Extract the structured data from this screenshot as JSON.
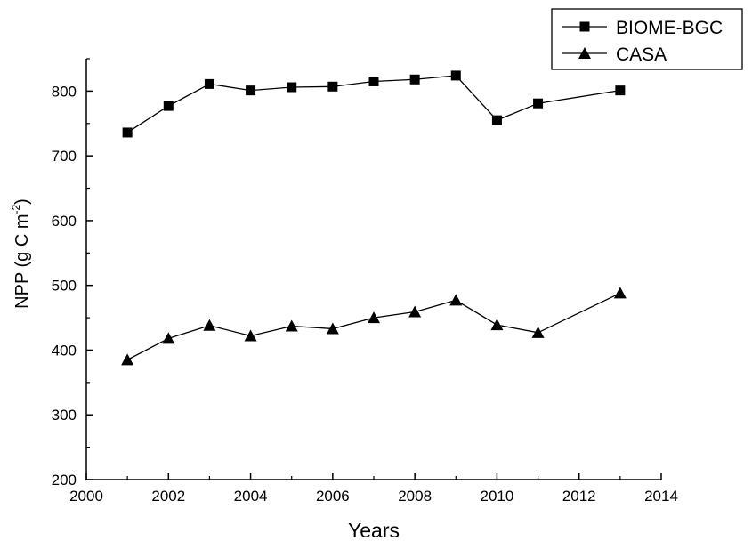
{
  "chart_data": {
    "type": "line",
    "xlabel": "Years",
    "ylabel": "NPP (g C m",
    "ylabel_superscript": "-2",
    "ylabel_close": ")",
    "xlim": [
      2000,
      2014
    ],
    "ylim": [
      200,
      850
    ],
    "x_ticks": [
      "2000",
      "2002",
      "2004",
      "2006",
      "2008",
      "2010",
      "2012",
      "2014"
    ],
    "y_ticks": [
      "200",
      "300",
      "400",
      "500",
      "600",
      "700",
      "800"
    ],
    "grid": false,
    "legend_position": "top-right",
    "series": [
      {
        "name": "BIOME-BGC",
        "marker": "square",
        "color": "#000000",
        "x": [
          2001,
          2002,
          2003,
          2004,
          2005,
          2006,
          2007,
          2008,
          2009,
          2010,
          2011,
          2013
        ],
        "values": [
          736,
          777,
          811,
          801,
          806,
          807,
          815,
          818,
          824,
          755,
          781,
          801
        ]
      },
      {
        "name": "CASA",
        "marker": "triangle",
        "color": "#000000",
        "x": [
          2001,
          2002,
          2003,
          2004,
          2005,
          2006,
          2007,
          2008,
          2009,
          2010,
          2011,
          2013
        ],
        "values": [
          385,
          418,
          438,
          422,
          437,
          433,
          450,
          459,
          477,
          439,
          427,
          488
        ]
      }
    ]
  }
}
